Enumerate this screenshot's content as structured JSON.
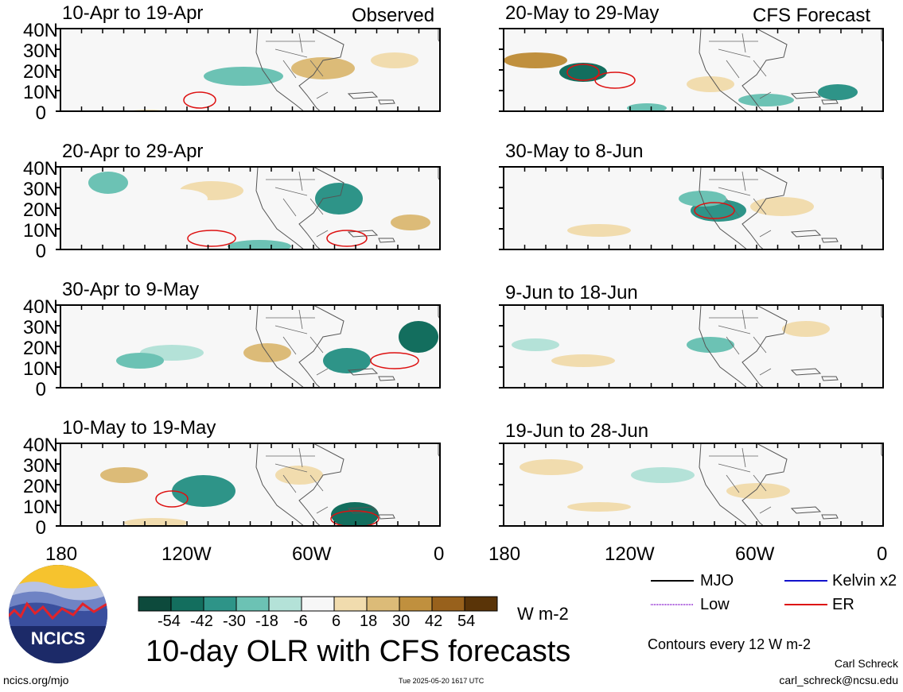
{
  "header": {
    "left_label": "Observed",
    "right_label": "CFS Forecast"
  },
  "panels": [
    {
      "title": "10-Apr to 19-Apr"
    },
    {
      "title": "20-Apr to 29-Apr"
    },
    {
      "title": "30-Apr to 9-May"
    },
    {
      "title": "10-May to 19-May"
    },
    {
      "title": "20-May to 29-May"
    },
    {
      "title": "30-May to 8-Jun"
    },
    {
      "title": "9-Jun to 18-Jun"
    },
    {
      "title": "19-Jun to 28-Jun"
    }
  ],
  "axes": {
    "lat_labels": [
      "40N",
      "30N",
      "20N",
      "10N",
      "0"
    ],
    "lon_labels": [
      "180",
      "120W",
      "60W",
      "0"
    ]
  },
  "colorbar": {
    "ticks": [
      "-54",
      "-42",
      "-30",
      "-18",
      "-6",
      "6",
      "18",
      "30",
      "42",
      "54"
    ],
    "colors": [
      "#0d4a3c",
      "#136e5e",
      "#2e9488",
      "#6cc2b4",
      "#b4e2d8",
      "#f7f7f7",
      "#f1dcae",
      "#dcbb78",
      "#c0903e",
      "#98611c",
      "#5a3408"
    ],
    "unit": "W m-2"
  },
  "legend": {
    "items": [
      {
        "label": "MJO",
        "color": "#000000"
      },
      {
        "label": "Kelvin x2",
        "color": "#1111cc"
      },
      {
        "label": "Low",
        "color": "#9b3fd6"
      },
      {
        "label": "ER",
        "color": "#dd1111"
      }
    ],
    "contour_note": "Contours every 12 W m-2"
  },
  "logo": {
    "text": "NCICS"
  },
  "footer": {
    "main_title": "10-day OLR with CFS forecasts",
    "website": "ncics.org/mjo",
    "timestamp": "Tue 2025-05-20 1617 UTC",
    "author": "Carl Schreck",
    "email": "carl_schreck@ncsu.edu"
  }
}
